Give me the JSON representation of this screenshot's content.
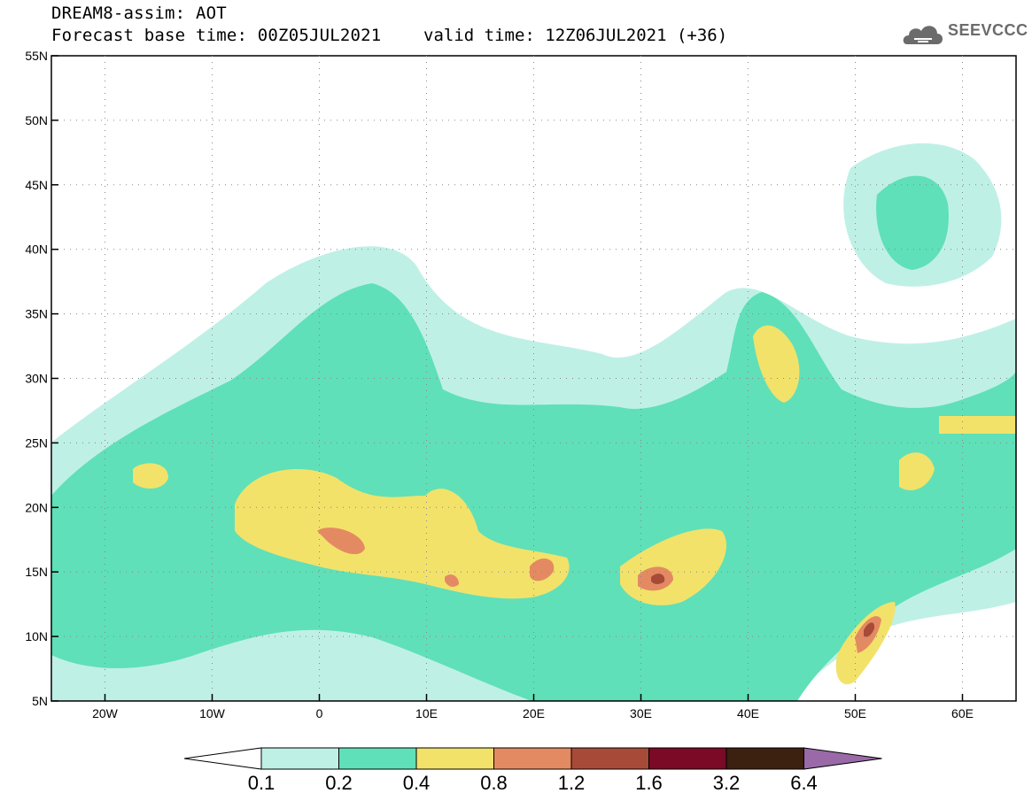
{
  "header": {
    "title": "DREAM8-assim: AOT",
    "base_time": "Forecast base time: 00Z05JUL2021",
    "valid_time": "valid time: 12Z06JUL2021 (+36)"
  },
  "logo": {
    "text": "SEEVCCC",
    "icon": "cloud-icon"
  },
  "map": {
    "lon_range": [
      -25,
      65
    ],
    "lat_range": [
      5,
      55
    ],
    "lon_ticks": [
      "20W",
      "10W",
      "0",
      "10E",
      "20E",
      "30E",
      "40E",
      "50E",
      "60E"
    ],
    "lon_tick_values": [
      -20,
      -10,
      0,
      10,
      20,
      30,
      40,
      50,
      60
    ],
    "lat_ticks": [
      "5N",
      "10N",
      "15N",
      "20N",
      "25N",
      "30N",
      "35N",
      "40N",
      "45N",
      "50N",
      "55N"
    ],
    "lat_tick_values": [
      5,
      10,
      15,
      20,
      25,
      30,
      35,
      40,
      45,
      50,
      55
    ],
    "grid": "dotted"
  },
  "colorbar": {
    "labels": [
      "0.1",
      "0.2",
      "0.4",
      "0.8",
      "1.2",
      "1.6",
      "3.2",
      "6.4"
    ],
    "colors": [
      "#ffffff",
      "#bff0e6",
      "#5fe0b8",
      "#f2e26a",
      "#e48a62",
      "#a84a38",
      "#7a0a26",
      "#3c2010",
      "#9a6aa8"
    ]
  }
}
